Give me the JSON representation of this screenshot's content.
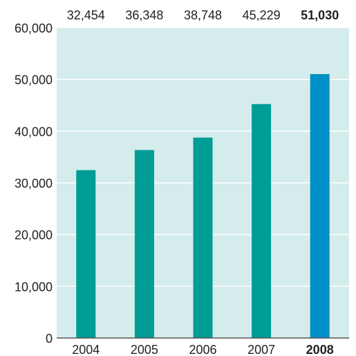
{
  "chart_data": {
    "type": "bar",
    "categories": [
      "2004",
      "2005",
      "2006",
      "2007",
      "2008"
    ],
    "values": [
      32454,
      36348,
      38748,
      45229,
      51030
    ],
    "value_labels": [
      "32,454",
      "36,348",
      "38,748",
      "45,229",
      "51,030"
    ],
    "highlight": [
      false,
      false,
      false,
      false,
      true
    ],
    "ylim": [
      0,
      60000
    ],
    "yticks": [
      0,
      10000,
      20000,
      30000,
      40000,
      50000,
      60000
    ],
    "ytick_labels": [
      "0",
      "10,000",
      "20,000",
      "30,000",
      "40,000",
      "50,000",
      "60,000"
    ],
    "grid": true,
    "colors": {
      "plot_background": "#d5ecec",
      "bar": "#009c96",
      "bar_highlight": "#0090c8",
      "gridline": "#ffffff",
      "axis": "#555555",
      "text": "#222222"
    }
  }
}
